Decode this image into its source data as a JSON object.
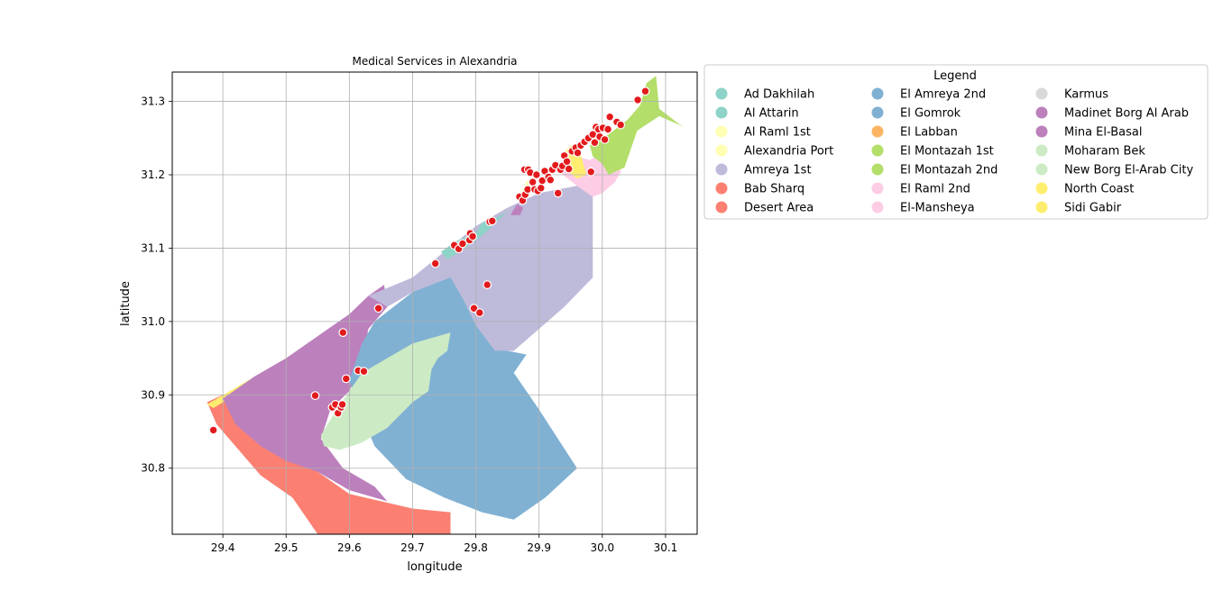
{
  "chart_data": {
    "type": "scatter",
    "title": "Medical Services in Alexandria",
    "xlabel": "longitude",
    "ylabel": "latitude",
    "xlim": [
      29.32,
      30.15
    ],
    "ylim": [
      30.71,
      31.34
    ],
    "xticks": [
      29.4,
      29.5,
      29.6,
      29.7,
      29.8,
      29.9,
      30.0,
      30.1
    ],
    "xtick_labels": [
      "29.4",
      "29.5",
      "29.6",
      "29.7",
      "29.8",
      "29.9",
      "30.0",
      "30.1"
    ],
    "yticks": [
      30.8,
      30.9,
      31.0,
      31.1,
      31.2,
      31.3
    ],
    "ytick_labels": [
      "30.8",
      "30.9",
      "31.0",
      "31.1",
      "31.2",
      "31.3"
    ],
    "grid": true,
    "legend": {
      "title": "Legend",
      "placement": "outside-right-top",
      "entries": [
        {
          "label": "Ad Dakhilah",
          "color": "#8dd3c7"
        },
        {
          "label": "Al Attarin",
          "color": "#8dd3c7"
        },
        {
          "label": "Al Raml 1st",
          "color": "#ffffb3"
        },
        {
          "label": "Alexandria Port",
          "color": "#ffffb3"
        },
        {
          "label": "Amreya 1st",
          "color": "#bebada"
        },
        {
          "label": "Bab Sharq",
          "color": "#fb8072"
        },
        {
          "label": "Desert Area",
          "color": "#fb8072"
        },
        {
          "label": "El Amreya 2nd",
          "color": "#80b1d3"
        },
        {
          "label": "El Gomrok",
          "color": "#80b1d3"
        },
        {
          "label": "El Labban",
          "color": "#fdb462"
        },
        {
          "label": "El Montazah 1st",
          "color": "#b3de69"
        },
        {
          "label": "El Montazah 2nd",
          "color": "#b3de69"
        },
        {
          "label": "El Raml 2nd",
          "color": "#fccde5"
        },
        {
          "label": "El-Mansheya",
          "color": "#fccde5"
        },
        {
          "label": "Karmus",
          "color": "#d9d9d9"
        },
        {
          "label": "Madinet Borg Al Arab",
          "color": "#bc80bd"
        },
        {
          "label": "Mina El-Basal",
          "color": "#bc80bd"
        },
        {
          "label": "Moharam Bek",
          "color": "#ccebc5"
        },
        {
          "label": "New Borg El-Arab City",
          "color": "#ccebc5"
        },
        {
          "label": "North Coast",
          "color": "#ffed6f"
        },
        {
          "label": "Sidi Gabir",
          "color": "#ffed6f"
        }
      ]
    },
    "regions": [
      {
        "district": "Desert Area",
        "color": "#fb8072",
        "polygon": [
          [
            29.375,
            30.89
          ],
          [
            29.4,
            30.9
          ],
          [
            29.45,
            30.87
          ],
          [
            29.5,
            30.82
          ],
          [
            29.55,
            30.795
          ],
          [
            29.6,
            30.765
          ],
          [
            29.65,
            30.755
          ],
          [
            29.7,
            30.745
          ],
          [
            29.76,
            30.74
          ],
          [
            29.76,
            30.71
          ],
          [
            29.55,
            30.71
          ],
          [
            29.51,
            30.76
          ],
          [
            29.46,
            30.79
          ],
          [
            29.42,
            30.83
          ],
          [
            29.39,
            30.86
          ]
        ]
      },
      {
        "district": "North Coast",
        "color": "#ffed6f",
        "polygon": [
          [
            29.375,
            30.887
          ],
          [
            29.52,
            30.96
          ],
          [
            29.545,
            30.975
          ],
          [
            29.54,
            30.96
          ],
          [
            29.43,
            30.905
          ],
          [
            29.385,
            30.882
          ]
        ]
      },
      {
        "district": "Madinet Borg Al Arab",
        "color": "#bc80bd",
        "polygon": [
          [
            29.4,
            30.895
          ],
          [
            29.45,
            30.925
          ],
          [
            29.5,
            30.95
          ],
          [
            29.55,
            30.98
          ],
          [
            29.6,
            31.01
          ],
          [
            29.63,
            31.035
          ],
          [
            29.655,
            31.05
          ],
          [
            29.66,
            31.02
          ],
          [
            29.63,
            30.99
          ],
          [
            29.62,
            30.94
          ],
          [
            29.6,
            30.905
          ],
          [
            29.57,
            30.88
          ],
          [
            29.555,
            30.84
          ],
          [
            29.59,
            30.8
          ],
          [
            29.64,
            30.775
          ],
          [
            29.66,
            30.755
          ],
          [
            29.6,
            30.77
          ],
          [
            29.55,
            30.795
          ],
          [
            29.5,
            30.81
          ],
          [
            29.46,
            30.83
          ],
          [
            29.42,
            30.86
          ]
        ]
      },
      {
        "district": "El Amreya 2nd",
        "color": "#80b1d3",
        "polygon": [
          [
            29.64,
            31.0
          ],
          [
            29.7,
            31.04
          ],
          [
            29.76,
            31.065
          ],
          [
            29.82,
            31.02
          ],
          [
            29.85,
            30.96
          ],
          [
            29.88,
            30.955
          ],
          [
            29.86,
            30.93
          ],
          [
            29.9,
            30.88
          ],
          [
            29.93,
            30.84
          ],
          [
            29.96,
            30.8
          ],
          [
            29.91,
            30.76
          ],
          [
            29.86,
            30.73
          ],
          [
            29.81,
            30.74
          ],
          [
            29.75,
            30.76
          ],
          [
            29.69,
            30.785
          ],
          [
            29.64,
            30.83
          ],
          [
            29.62,
            30.87
          ],
          [
            29.6,
            30.92
          ],
          [
            29.62,
            30.97
          ]
        ]
      },
      {
        "district": "New Borg El-Arab City",
        "color": "#ccebc5",
        "polygon": [
          [
            29.58,
            30.88
          ],
          [
            29.62,
            30.93
          ],
          [
            29.7,
            30.97
          ],
          [
            29.76,
            30.985
          ],
          [
            29.755,
            30.96
          ],
          [
            29.74,
            30.95
          ],
          [
            29.73,
            30.935
          ],
          [
            29.725,
            30.905
          ],
          [
            29.7,
            30.89
          ],
          [
            29.66,
            30.855
          ],
          [
            29.62,
            30.835
          ],
          [
            29.585,
            30.825
          ],
          [
            29.56,
            30.83
          ],
          [
            29.555,
            30.845
          ]
        ]
      },
      {
        "district": "Amreya 1st",
        "color": "#bebada",
        "polygon": [
          [
            29.63,
            31.035
          ],
          [
            29.7,
            31.06
          ],
          [
            29.75,
            31.095
          ],
          [
            29.8,
            31.13
          ],
          [
            29.85,
            31.155
          ],
          [
            29.9,
            31.175
          ],
          [
            29.96,
            31.185
          ],
          [
            29.985,
            31.17
          ],
          [
            29.985,
            31.06
          ],
          [
            29.94,
            31.02
          ],
          [
            29.9,
            30.99
          ],
          [
            29.86,
            30.96
          ],
          [
            29.83,
            30.96
          ],
          [
            29.8,
            30.995
          ],
          [
            29.78,
            31.03
          ],
          [
            29.76,
            31.06
          ],
          [
            29.7,
            31.04
          ],
          [
            29.66,
            31.02
          ]
        ]
      },
      {
        "district": "Ad Dakhilah",
        "color": "#8dd3c7",
        "polygon": [
          [
            29.745,
            31.095
          ],
          [
            29.77,
            31.11
          ],
          [
            29.8,
            31.12
          ],
          [
            29.81,
            31.135
          ],
          [
            29.83,
            31.14
          ],
          [
            29.85,
            31.15
          ],
          [
            29.82,
            31.125
          ],
          [
            29.8,
            31.11
          ],
          [
            29.775,
            31.095
          ],
          [
            29.755,
            31.085
          ]
        ]
      },
      {
        "district": "Mina El-Basal",
        "color": "#bc80bd",
        "polygon": [
          [
            29.855,
            31.145
          ],
          [
            29.865,
            31.16
          ],
          [
            29.875,
            31.155
          ],
          [
            29.87,
            31.145
          ]
        ]
      },
      {
        "district": "Al Raml 1st",
        "color": "#ffffb3",
        "polygon": [
          [
            29.87,
            31.175
          ],
          [
            29.88,
            31.19
          ],
          [
            29.9,
            31.205
          ],
          [
            29.89,
            31.19
          ]
        ]
      },
      {
        "district": "El Raml 2nd",
        "color": "#fccde5",
        "polygon": [
          [
            29.93,
            31.205
          ],
          [
            29.96,
            31.225
          ],
          [
            29.98,
            31.22
          ],
          [
            30.0,
            31.23
          ],
          [
            30.01,
            31.22
          ],
          [
            30.03,
            31.205
          ],
          [
            30.02,
            31.19
          ],
          [
            30.0,
            31.175
          ],
          [
            29.985,
            31.17
          ],
          [
            29.96,
            31.185
          ]
        ]
      },
      {
        "district": "Sidi Gabir",
        "color": "#ffed6f",
        "polygon": [
          [
            29.935,
            31.225
          ],
          [
            29.95,
            31.24
          ],
          [
            29.965,
            31.23
          ],
          [
            29.975,
            31.2
          ],
          [
            29.96,
            31.195
          ],
          [
            29.945,
            31.205
          ]
        ]
      },
      {
        "district": "El Montazah 1st",
        "color": "#b3de69",
        "polygon": [
          [
            29.98,
            31.24
          ],
          [
            30.01,
            31.255
          ],
          [
            30.04,
            31.275
          ],
          [
            30.06,
            31.295
          ],
          [
            30.07,
            31.325
          ],
          [
            30.085,
            31.335
          ],
          [
            30.09,
            31.29
          ],
          [
            30.12,
            31.27
          ],
          [
            30.13,
            31.265
          ],
          [
            30.09,
            31.28
          ],
          [
            30.055,
            31.26
          ],
          [
            30.045,
            31.235
          ],
          [
            30.035,
            31.21
          ],
          [
            30.01,
            31.2
          ],
          [
            30.0,
            31.215
          ],
          [
            29.985,
            31.225
          ]
        ]
      }
    ],
    "points": [
      [
        29.385,
        30.852
      ],
      [
        29.546,
        30.899
      ],
      [
        29.573,
        30.883
      ],
      [
        29.578,
        30.887
      ],
      [
        29.582,
        30.875
      ],
      [
        29.587,
        30.883
      ],
      [
        29.589,
        30.887
      ],
      [
        29.595,
        30.922
      ],
      [
        29.614,
        30.933
      ],
      [
        29.623,
        30.932
      ],
      [
        29.59,
        30.985
      ],
      [
        29.646,
        31.018
      ],
      [
        29.736,
        31.079
      ],
      [
        29.766,
        31.104
      ],
      [
        29.773,
        31.099
      ],
      [
        29.779,
        31.106
      ],
      [
        29.79,
        31.111
      ],
      [
        29.791,
        31.12
      ],
      [
        29.795,
        31.116
      ],
      [
        29.797,
        31.018
      ],
      [
        29.806,
        31.012
      ],
      [
        29.818,
        31.05
      ],
      [
        29.822,
        31.136
      ],
      [
        29.826,
        31.137
      ],
      [
        29.869,
        31.17
      ],
      [
        29.874,
        31.165
      ],
      [
        29.877,
        31.207
      ],
      [
        29.878,
        31.173
      ],
      [
        29.882,
        31.18
      ],
      [
        29.883,
        31.207
      ],
      [
        29.886,
        31.203
      ],
      [
        29.89,
        31.19
      ],
      [
        29.893,
        31.18
      ],
      [
        29.896,
        31.2
      ],
      [
        29.898,
        31.178
      ],
      [
        29.903,
        31.182
      ],
      [
        29.905,
        31.192
      ],
      [
        29.909,
        31.205
      ],
      [
        29.915,
        31.197
      ],
      [
        29.918,
        31.193
      ],
      [
        29.921,
        31.207
      ],
      [
        29.926,
        31.213
      ],
      [
        29.93,
        31.175
      ],
      [
        29.934,
        31.207
      ],
      [
        29.937,
        31.212
      ],
      [
        29.94,
        31.226
      ],
      [
        29.944,
        31.218
      ],
      [
        29.947,
        31.208
      ],
      [
        29.952,
        31.232
      ],
      [
        29.958,
        31.237
      ],
      [
        29.961,
        31.23
      ],
      [
        29.966,
        31.24
      ],
      [
        29.972,
        31.245
      ],
      [
        29.978,
        31.25
      ],
      [
        29.982,
        31.204
      ],
      [
        29.985,
        31.255
      ],
      [
        29.988,
        31.244
      ],
      [
        29.99,
        31.265
      ],
      [
        29.994,
        31.262
      ],
      [
        29.996,
        31.252
      ],
      [
        30.001,
        31.264
      ],
      [
        30.004,
        31.248
      ],
      [
        30.009,
        31.262
      ],
      [
        30.012,
        31.279
      ],
      [
        30.023,
        31.272
      ],
      [
        30.029,
        31.268
      ],
      [
        30.056,
        31.302
      ],
      [
        30.068,
        31.314
      ]
    ]
  }
}
